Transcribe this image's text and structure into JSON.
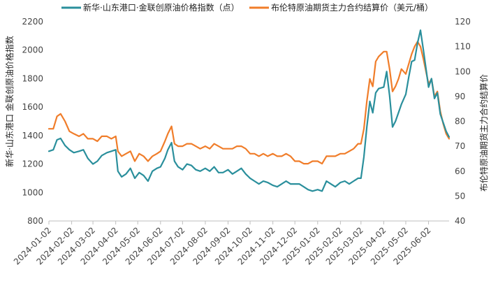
{
  "chart_data": {
    "type": "line",
    "title": "",
    "legend_position": "top",
    "grid": false,
    "x_tick_labels": [
      "2024-01-02",
      "2024-02-02",
      "2024-03-02",
      "2024-04-02",
      "2024-05-02",
      "2024-06-02",
      "2024-07-02",
      "2024-08-02",
      "2024-09-02",
      "2024-10-02",
      "2024-11-02",
      "2024-12-02",
      "2025-01-02",
      "2025-02-02",
      "2025-03-02",
      "2025-04-02",
      "2025-05-02",
      "2025-06-02"
    ],
    "x_range": [
      "2024-01-02",
      "2025-06-30"
    ],
    "left_axis": {
      "label": "新华·山东港口 金联创原油价格指数",
      "range": [
        800,
        2200
      ],
      "ticks": [
        800,
        1000,
        1200,
        1400,
        1600,
        1800,
        2000,
        2200
      ]
    },
    "right_axis": {
      "label": "布伦特原油期货主力合约结算价",
      "range": [
        40,
        120
      ],
      "ticks": [
        40,
        50,
        60,
        70,
        80,
        90,
        100,
        110,
        120
      ]
    },
    "series": [
      {
        "name": "新华·山东港口·金联创原油价格指数（点）",
        "axis": "left",
        "color": "#2a8f9c",
        "points": [
          [
            "2024-01-02",
            1290
          ],
          [
            "2024-01-08",
            1300
          ],
          [
            "2024-01-13",
            1370
          ],
          [
            "2024-01-18",
            1380
          ],
          [
            "2024-01-24",
            1330
          ],
          [
            "2024-01-30",
            1300
          ],
          [
            "2024-02-05",
            1280
          ],
          [
            "2024-02-12",
            1290
          ],
          [
            "2024-02-18",
            1300
          ],
          [
            "2024-02-24",
            1240
          ],
          [
            "2024-03-02",
            1200
          ],
          [
            "2024-03-08",
            1220
          ],
          [
            "2024-03-14",
            1260
          ],
          [
            "2024-03-21",
            1280
          ],
          [
            "2024-03-27",
            1290
          ],
          [
            "2024-04-02",
            1300
          ],
          [
            "2024-04-05",
            1150
          ],
          [
            "2024-04-10",
            1110
          ],
          [
            "2024-04-16",
            1130
          ],
          [
            "2024-04-22",
            1170
          ],
          [
            "2024-04-28",
            1100
          ],
          [
            "2024-05-04",
            1140
          ],
          [
            "2024-05-10",
            1120
          ],
          [
            "2024-05-16",
            1080
          ],
          [
            "2024-05-22",
            1150
          ],
          [
            "2024-05-28",
            1170
          ],
          [
            "2024-06-02",
            1180
          ],
          [
            "2024-06-08",
            1240
          ],
          [
            "2024-06-12",
            1300
          ],
          [
            "2024-06-17",
            1350
          ],
          [
            "2024-06-21",
            1220
          ],
          [
            "2024-06-26",
            1180
          ],
          [
            "2024-07-02",
            1160
          ],
          [
            "2024-07-08",
            1200
          ],
          [
            "2024-07-14",
            1190
          ],
          [
            "2024-07-20",
            1160
          ],
          [
            "2024-07-26",
            1150
          ],
          [
            "2024-08-02",
            1170
          ],
          [
            "2024-08-08",
            1150
          ],
          [
            "2024-08-14",
            1180
          ],
          [
            "2024-08-20",
            1140
          ],
          [
            "2024-08-26",
            1140
          ],
          [
            "2024-09-02",
            1160
          ],
          [
            "2024-09-08",
            1130
          ],
          [
            "2024-09-14",
            1150
          ],
          [
            "2024-09-20",
            1170
          ],
          [
            "2024-09-26",
            1130
          ],
          [
            "2024-10-02",
            1100
          ],
          [
            "2024-10-08",
            1080
          ],
          [
            "2024-10-14",
            1060
          ],
          [
            "2024-10-20",
            1080
          ],
          [
            "2024-10-26",
            1070
          ],
          [
            "2024-11-02",
            1050
          ],
          [
            "2024-11-08",
            1040
          ],
          [
            "2024-11-14",
            1060
          ],
          [
            "2024-11-20",
            1080
          ],
          [
            "2024-11-26",
            1060
          ],
          [
            "2024-12-02",
            1060
          ],
          [
            "2024-12-08",
            1060
          ],
          [
            "2024-12-14",
            1040
          ],
          [
            "2024-12-20",
            1020
          ],
          [
            "2024-12-26",
            1010
          ],
          [
            "2025-01-02",
            1020
          ],
          [
            "2025-01-08",
            1010
          ],
          [
            "2025-01-14",
            1080
          ],
          [
            "2025-01-20",
            1060
          ],
          [
            "2025-01-26",
            1040
          ],
          [
            "2025-02-02",
            1070
          ],
          [
            "2025-02-08",
            1080
          ],
          [
            "2025-02-14",
            1060
          ],
          [
            "2025-02-20",
            1080
          ],
          [
            "2025-02-26",
            1100
          ],
          [
            "2025-03-02",
            1100
          ],
          [
            "2025-03-06",
            1250
          ],
          [
            "2025-03-10",
            1460
          ],
          [
            "2025-03-14",
            1640
          ],
          [
            "2025-03-18",
            1560
          ],
          [
            "2025-03-22",
            1700
          ],
          [
            "2025-03-26",
            1730
          ],
          [
            "2025-04-02",
            1740
          ],
          [
            "2025-04-06",
            1850
          ],
          [
            "2025-04-10",
            1680
          ],
          [
            "2025-04-14",
            1460
          ],
          [
            "2025-04-18",
            1500
          ],
          [
            "2025-04-22",
            1560
          ],
          [
            "2025-04-26",
            1620
          ],
          [
            "2025-05-02",
            1690
          ],
          [
            "2025-05-06",
            1810
          ],
          [
            "2025-05-10",
            1920
          ],
          [
            "2025-05-14",
            1930
          ],
          [
            "2025-05-18",
            2050
          ],
          [
            "2025-05-22",
            2140
          ],
          [
            "2025-05-26",
            2000
          ],
          [
            "2025-06-02",
            1740
          ],
          [
            "2025-06-06",
            1800
          ],
          [
            "2025-06-10",
            1660
          ],
          [
            "2025-06-14",
            1700
          ],
          [
            "2025-06-18",
            1550
          ],
          [
            "2025-06-22",
            1490
          ],
          [
            "2025-06-26",
            1430
          ],
          [
            "2025-06-30",
            1390
          ]
        ]
      },
      {
        "name": "布伦特原油期货主力合约结算价（美元/桶）",
        "axis": "right",
        "color": "#f07d2a",
        "points": [
          [
            "2024-01-02",
            77
          ],
          [
            "2024-01-08",
            77
          ],
          [
            "2024-01-13",
            82
          ],
          [
            "2024-01-18",
            83
          ],
          [
            "2024-01-24",
            80
          ],
          [
            "2024-01-30",
            76
          ],
          [
            "2024-02-05",
            75
          ],
          [
            "2024-02-12",
            74
          ],
          [
            "2024-02-18",
            75
          ],
          [
            "2024-02-24",
            73
          ],
          [
            "2024-03-02",
            73
          ],
          [
            "2024-03-08",
            72
          ],
          [
            "2024-03-14",
            74
          ],
          [
            "2024-03-21",
            74
          ],
          [
            "2024-03-27",
            73
          ],
          [
            "2024-04-02",
            74
          ],
          [
            "2024-04-05",
            68
          ],
          [
            "2024-04-10",
            66
          ],
          [
            "2024-04-16",
            67
          ],
          [
            "2024-04-22",
            68
          ],
          [
            "2024-04-28",
            64
          ],
          [
            "2024-05-04",
            67
          ],
          [
            "2024-05-10",
            66
          ],
          [
            "2024-05-16",
            64
          ],
          [
            "2024-05-22",
            66
          ],
          [
            "2024-05-28",
            67
          ],
          [
            "2024-06-02",
            68
          ],
          [
            "2024-06-08",
            72
          ],
          [
            "2024-06-12",
            75
          ],
          [
            "2024-06-17",
            78
          ],
          [
            "2024-06-21",
            71
          ],
          [
            "2024-06-26",
            70
          ],
          [
            "2024-07-02",
            70
          ],
          [
            "2024-07-08",
            71
          ],
          [
            "2024-07-14",
            71
          ],
          [
            "2024-07-20",
            70
          ],
          [
            "2024-07-26",
            69
          ],
          [
            "2024-08-02",
            70
          ],
          [
            "2024-08-08",
            69
          ],
          [
            "2024-08-14",
            71
          ],
          [
            "2024-08-20",
            70
          ],
          [
            "2024-08-26",
            69
          ],
          [
            "2024-09-02",
            69
          ],
          [
            "2024-09-08",
            69
          ],
          [
            "2024-09-14",
            70
          ],
          [
            "2024-09-20",
            70
          ],
          [
            "2024-09-26",
            69
          ],
          [
            "2024-10-02",
            67
          ],
          [
            "2024-10-08",
            67
          ],
          [
            "2024-10-14",
            66
          ],
          [
            "2024-10-20",
            67
          ],
          [
            "2024-10-26",
            66
          ],
          [
            "2024-11-02",
            67
          ],
          [
            "2024-11-08",
            66
          ],
          [
            "2024-11-14",
            66
          ],
          [
            "2024-11-20",
            67
          ],
          [
            "2024-11-26",
            66
          ],
          [
            "2024-12-02",
            64
          ],
          [
            "2024-12-08",
            64
          ],
          [
            "2024-12-14",
            63
          ],
          [
            "2024-12-20",
            63
          ],
          [
            "2024-12-26",
            64
          ],
          [
            "2025-01-02",
            64
          ],
          [
            "2025-01-08",
            63
          ],
          [
            "2025-01-14",
            66
          ],
          [
            "2025-01-20",
            66
          ],
          [
            "2025-01-26",
            66
          ],
          [
            "2025-02-02",
            67
          ],
          [
            "2025-02-08",
            67
          ],
          [
            "2025-02-14",
            68
          ],
          [
            "2025-02-20",
            69
          ],
          [
            "2025-02-26",
            71
          ],
          [
            "2025-03-02",
            71
          ],
          [
            "2025-03-06",
            77
          ],
          [
            "2025-03-10",
            88
          ],
          [
            "2025-03-14",
            97
          ],
          [
            "2025-03-18",
            94
          ],
          [
            "2025-03-22",
            104
          ],
          [
            "2025-03-26",
            106
          ],
          [
            "2025-04-02",
            108
          ],
          [
            "2025-04-06",
            108
          ],
          [
            "2025-04-10",
            101
          ],
          [
            "2025-04-14",
            92
          ],
          [
            "2025-04-18",
            94
          ],
          [
            "2025-04-22",
            97
          ],
          [
            "2025-04-26",
            101
          ],
          [
            "2025-05-02",
            99
          ],
          [
            "2025-05-06",
            103
          ],
          [
            "2025-05-10",
            107
          ],
          [
            "2025-05-14",
            110
          ],
          [
            "2025-05-18",
            112
          ],
          [
            "2025-05-22",
            110
          ],
          [
            "2025-05-26",
            105
          ],
          [
            "2025-06-02",
            95
          ],
          [
            "2025-06-06",
            97
          ],
          [
            "2025-06-10",
            90
          ],
          [
            "2025-06-14",
            92
          ],
          [
            "2025-06-18",
            84
          ],
          [
            "2025-06-22",
            79
          ],
          [
            "2025-06-26",
            75
          ],
          [
            "2025-06-30",
            73
          ]
        ]
      }
    ]
  }
}
